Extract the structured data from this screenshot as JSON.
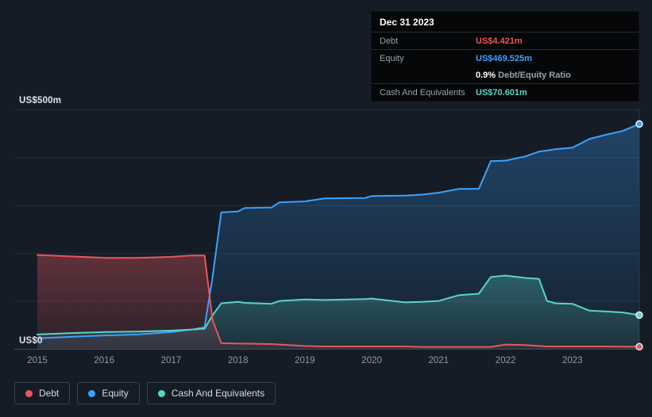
{
  "tooltip": {
    "date": "Dec 31 2023",
    "debt_label": "Debt",
    "debt_value": "US$4.421m",
    "debt_color": "#e8565c",
    "equity_label": "Equity",
    "equity_value": "US$469.525m",
    "equity_color": "#3ba1ff",
    "ratio_value": "0.9%",
    "ratio_label": "Debt/Equity Ratio",
    "cash_label": "Cash And Equivalents",
    "cash_value": "US$70.601m",
    "cash_color": "#58d5c5"
  },
  "legend": {
    "items": [
      {
        "label": "Debt",
        "color": "#e8565c"
      },
      {
        "label": "Equity",
        "color": "#3ba1ff"
      },
      {
        "label": "Cash And Equivalents",
        "color": "#58d5c5"
      }
    ]
  },
  "chart_data": {
    "type": "area",
    "y_label_top": "US$500m",
    "y_label_bottom": "US$0",
    "ylim": [
      0,
      500
    ],
    "y_gridlines": [
      0,
      100,
      200,
      300,
      400,
      500
    ],
    "x_ticks": [
      "2015",
      "2016",
      "2017",
      "2018",
      "2019",
      "2020",
      "2021",
      "2022",
      "2023"
    ],
    "x": [
      2015.0,
      2015.5,
      2016.0,
      2016.5,
      2017.0,
      2017.3,
      2017.5,
      2017.62,
      2017.75,
      2018.0,
      2018.1,
      2018.5,
      2018.62,
      2019.0,
      2019.3,
      2019.9,
      2020.0,
      2020.5,
      2020.75,
      2021.0,
      2021.3,
      2021.6,
      2021.78,
      2022.0,
      2022.3,
      2022.5,
      2022.62,
      2022.75,
      2023.0,
      2023.25,
      2023.5,
      2023.75,
      2024.0
    ],
    "series": [
      {
        "name": "Debt",
        "color": "#e8565c",
        "values": [
          196,
          193,
          190,
          190,
          192,
          195,
          195,
          60,
          12,
          11,
          11,
          10,
          9,
          6,
          5,
          5,
          5,
          5,
          4,
          4,
          4,
          4,
          4,
          9,
          8,
          6,
          5,
          5,
          5,
          5,
          5,
          4.5,
          4.421
        ]
      },
      {
        "name": "Equity",
        "color": "#3ba1ff",
        "values": [
          22,
          25,
          28,
          30,
          35,
          40,
          45,
          150,
          285,
          287,
          294,
          295,
          306,
          308,
          314,
          315,
          319,
          320,
          322,
          326,
          334,
          334,
          392,
          393,
          402,
          412,
          414,
          417,
          420,
          438,
          447,
          455,
          469.525
        ]
      },
      {
        "name": "Cash And Equivalents",
        "color": "#58d5c5",
        "values": [
          30,
          33,
          35,
          36,
          38,
          40,
          42,
          70,
          95,
          98,
          96,
          94,
          100,
          103,
          102,
          104,
          105,
          97,
          98,
          100,
          112,
          115,
          150,
          153,
          148,
          146,
          100,
          95,
          94,
          80,
          78,
          76,
          70.601
        ]
      }
    ]
  }
}
